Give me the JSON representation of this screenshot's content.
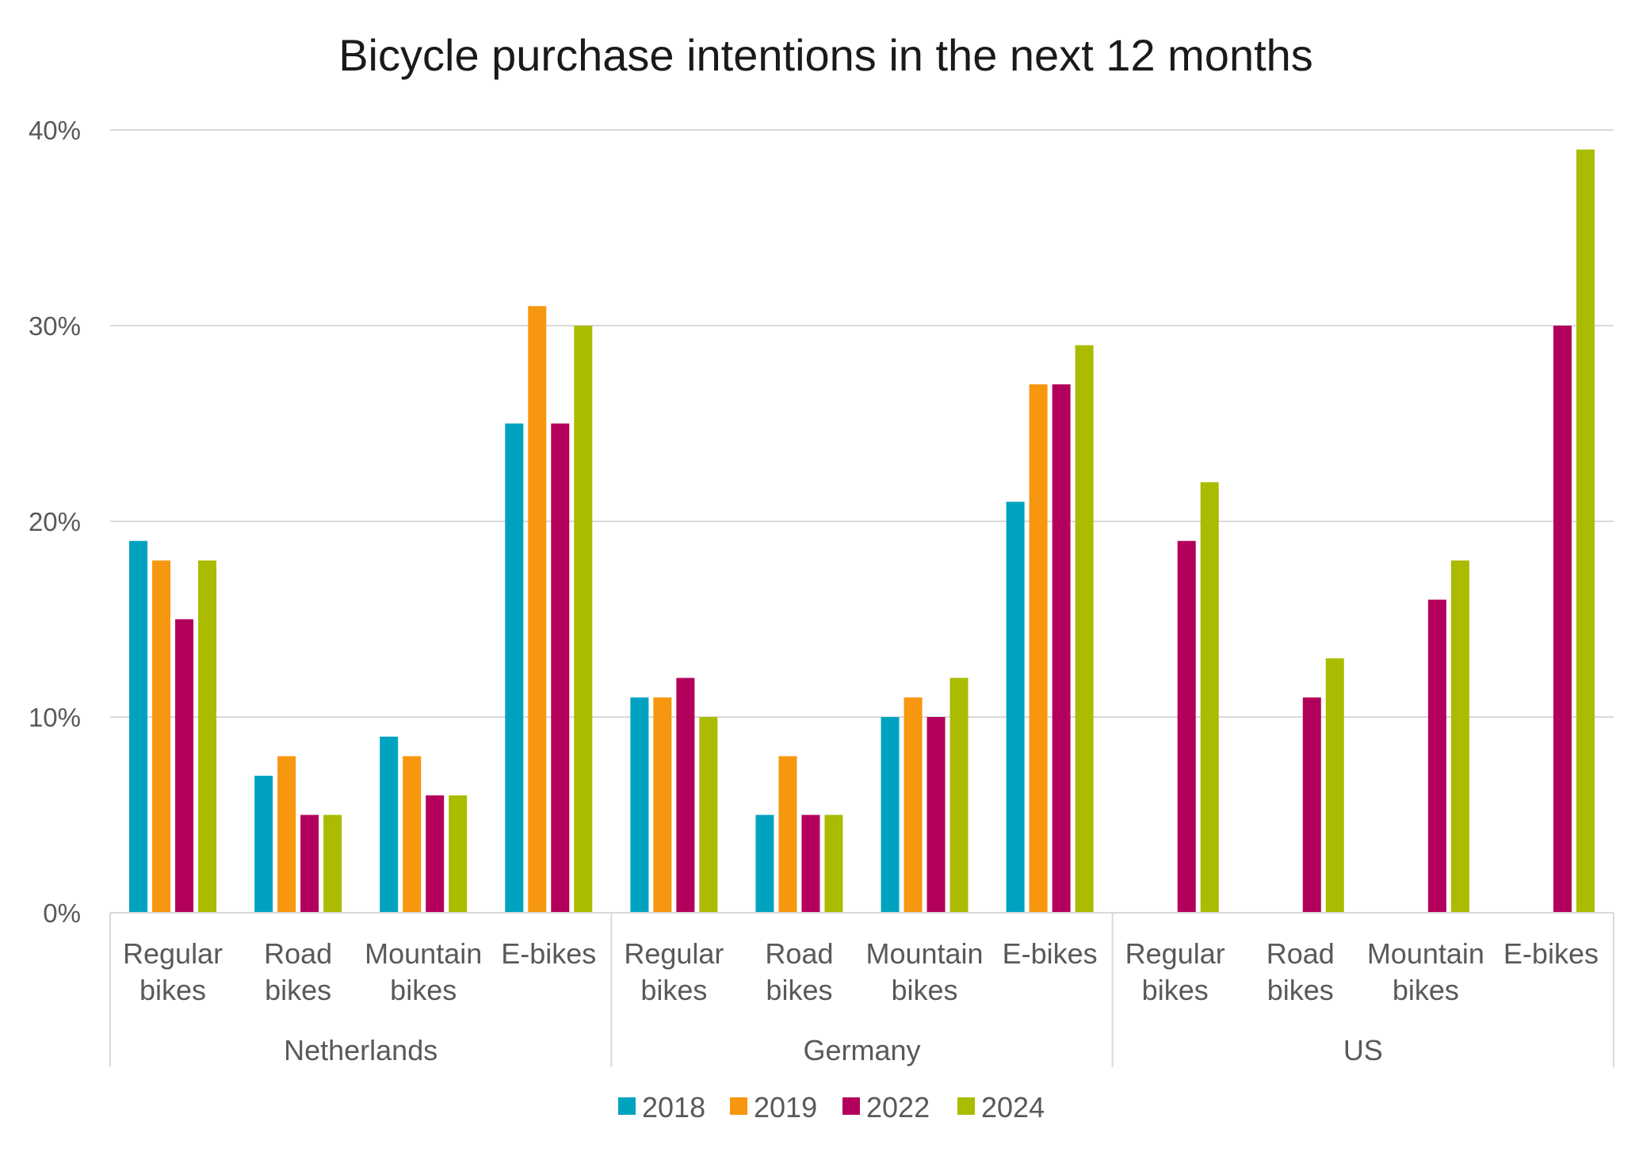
{
  "chart_data": {
    "type": "bar",
    "title": "Bicycle purchase intentions in the next 12 months",
    "ylim": [
      0,
      40
    ],
    "yticks": [
      "0%",
      "10%",
      "20%",
      "30%",
      "40%"
    ],
    "grid": true,
    "legend_position": "bottom",
    "groups": [
      {
        "name": "Netherlands",
        "categories": [
          {
            "label": [
              "Regular",
              "bikes"
            ],
            "values": [
              19,
              18,
              15,
              18
            ]
          },
          {
            "label": [
              "Road",
              "bikes"
            ],
            "values": [
              7,
              8,
              5,
              5
            ]
          },
          {
            "label": [
              "Mountain",
              "bikes"
            ],
            "values": [
              9,
              8,
              6,
              6
            ]
          },
          {
            "label": [
              "E-bikes"
            ],
            "values": [
              25,
              31,
              25,
              30
            ]
          }
        ]
      },
      {
        "name": "Germany",
        "categories": [
          {
            "label": [
              "Regular",
              "bikes"
            ],
            "values": [
              11,
              11,
              12,
              10
            ]
          },
          {
            "label": [
              "Road",
              "bikes"
            ],
            "values": [
              5,
              8,
              5,
              5
            ]
          },
          {
            "label": [
              "Mountain",
              "bikes"
            ],
            "values": [
              10,
              11,
              10,
              12
            ]
          },
          {
            "label": [
              "E-bikes"
            ],
            "values": [
              21,
              27,
              27,
              29
            ]
          }
        ]
      },
      {
        "name": "US",
        "categories": [
          {
            "label": [
              "Regular",
              "bikes"
            ],
            "values": [
              null,
              null,
              19,
              22
            ]
          },
          {
            "label": [
              "Road",
              "bikes"
            ],
            "values": [
              null,
              null,
              11,
              13
            ]
          },
          {
            "label": [
              "Mountain",
              "bikes"
            ],
            "values": [
              null,
              null,
              16,
              18
            ]
          },
          {
            "label": [
              "E-bikes"
            ],
            "values": [
              null,
              null,
              30,
              39
            ]
          }
        ]
      }
    ],
    "series": [
      {
        "name": "2018",
        "color": "#00a3bf"
      },
      {
        "name": "2019",
        "color": "#f7960f"
      },
      {
        "name": "2022",
        "color": "#b3005c"
      },
      {
        "name": "2024",
        "color": "#aabb00"
      }
    ]
  }
}
